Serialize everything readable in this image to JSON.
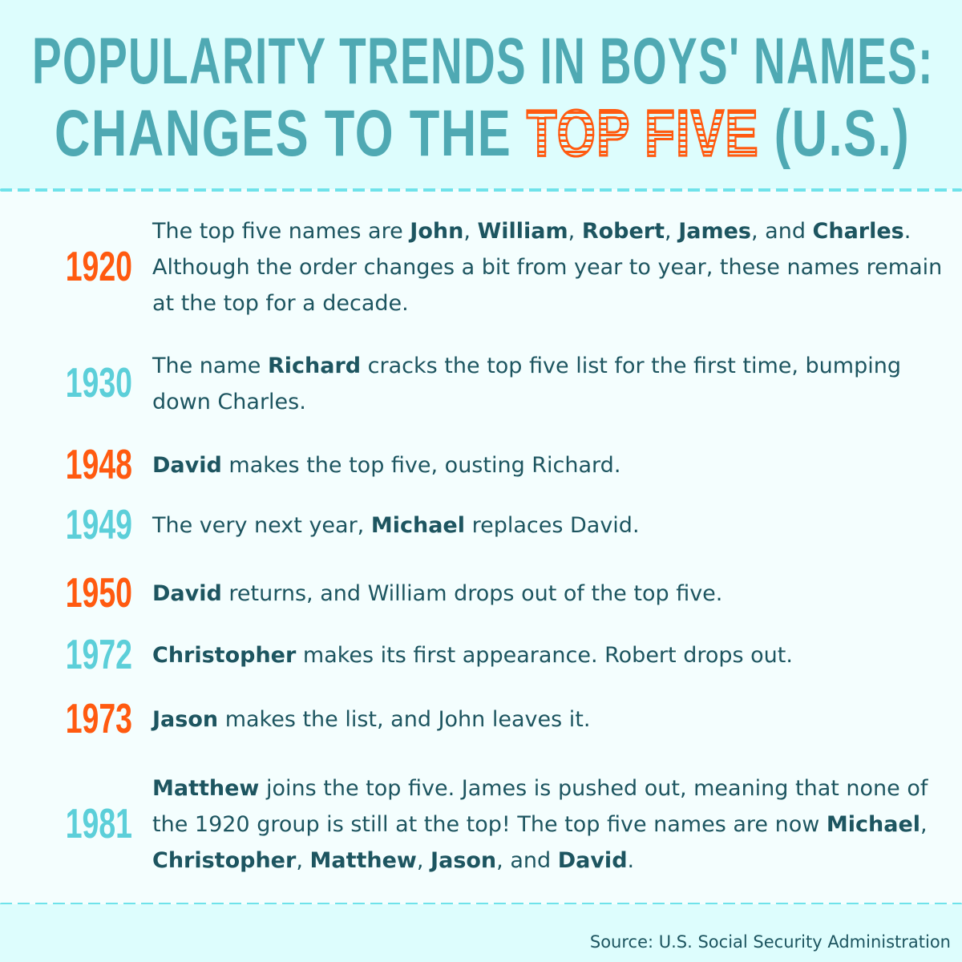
{
  "title": {
    "line1": "POPULARITY TRENDS IN BOYS' NAMES:",
    "line2_prefix": "CHANGES TO THE ",
    "line2_highlight": "TOP FIVE",
    "line2_suffix": " (U.S.)"
  },
  "colors": {
    "teal_title": "#4fa9b3",
    "orange": "#ff5a10",
    "teal_year": "#5ccfd9",
    "text": "#1d5560",
    "dash": "#6fe2ea"
  },
  "entries": [
    {
      "year": "1920",
      "color": "orange",
      "segments": [
        {
          "t": "The top five names are "
        },
        {
          "t": "John",
          "b": true
        },
        {
          "t": ", "
        },
        {
          "t": "William",
          "b": true
        },
        {
          "t": ", "
        },
        {
          "t": "Robert",
          "b": true
        },
        {
          "t": ", "
        },
        {
          "t": "James",
          "b": true
        },
        {
          "t": ", and "
        },
        {
          "t": "Charles",
          "b": true
        },
        {
          "t": ". Although the order changes a bit from year to year, these names remain at the top for a decade."
        }
      ]
    },
    {
      "year": "1930",
      "color": "teal",
      "segments": [
        {
          "t": "The name "
        },
        {
          "t": "Richard",
          "b": true
        },
        {
          "t": " cracks the top five list for the first time, bumping down Charles."
        }
      ]
    },
    {
      "year": "1948",
      "color": "orange",
      "segments": [
        {
          "t": "David",
          "b": true
        },
        {
          "t": " makes the top five, ousting Richard."
        }
      ]
    },
    {
      "year": "1949",
      "color": "teal",
      "segments": [
        {
          "t": "The very next year, "
        },
        {
          "t": "Michael",
          "b": true
        },
        {
          "t": " replaces David."
        }
      ]
    },
    {
      "year": "1950",
      "color": "orange",
      "segments": [
        {
          "t": "David",
          "b": true
        },
        {
          "t": " returns, and William drops out of the top five."
        }
      ]
    },
    {
      "year": "1972",
      "color": "teal",
      "segments": [
        {
          "t": "Christopher",
          "b": true
        },
        {
          "t": " makes its first appearance. Robert drops out."
        }
      ]
    },
    {
      "year": "1973",
      "color": "orange",
      "segments": [
        {
          "t": "Jason",
          "b": true
        },
        {
          "t": " makes the list, and John leaves it."
        }
      ]
    },
    {
      "year": "1981",
      "color": "teal",
      "segments": [
        {
          "t": "Matthew",
          "b": true
        },
        {
          "t": " joins the top five. James is pushed out, meaning that none of the 1920 group is still at the top! The top five names are now "
        },
        {
          "t": "Michael",
          "b": true
        },
        {
          "t": ", "
        },
        {
          "t": "Christopher",
          "b": true
        },
        {
          "t": ", "
        },
        {
          "t": "Matthew",
          "b": true
        },
        {
          "t": ", "
        },
        {
          "t": "Jason",
          "b": true
        },
        {
          "t": ", and "
        },
        {
          "t": "David",
          "b": true
        },
        {
          "t": "."
        }
      ]
    }
  ],
  "source": "Source: U.S. Social Security Administration"
}
